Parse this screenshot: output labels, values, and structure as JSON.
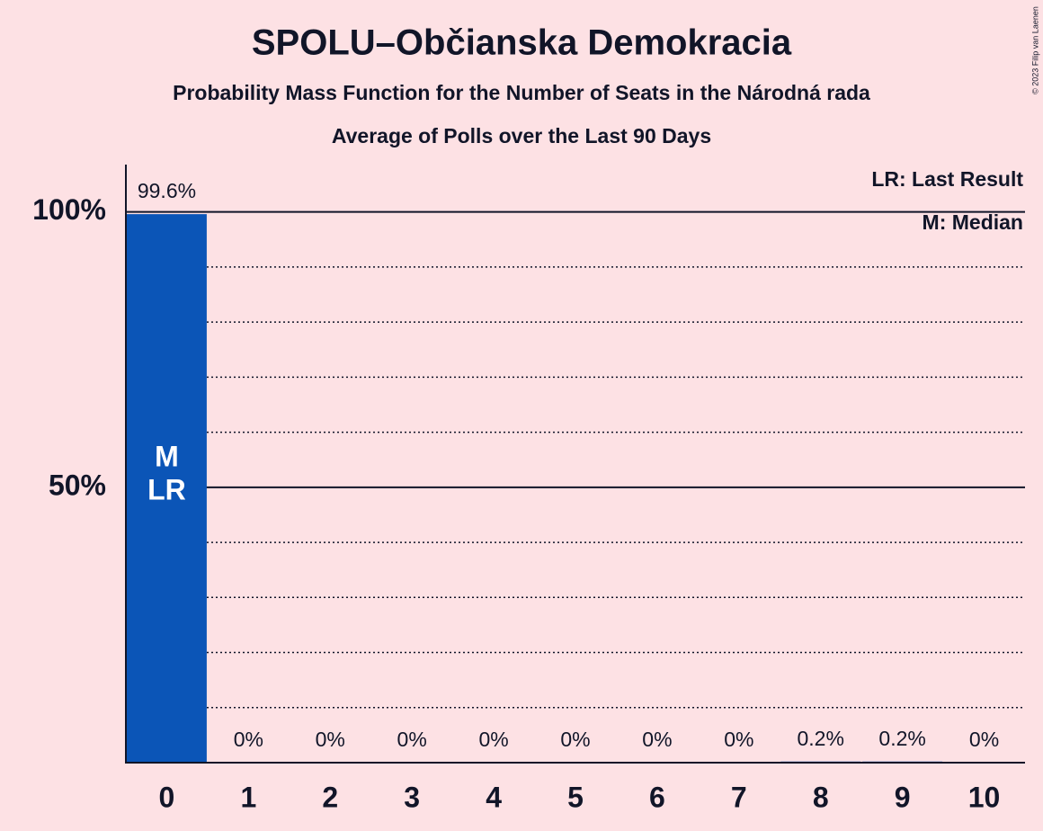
{
  "chart_data": {
    "type": "bar",
    "title": "SPOLU–Občianska Demokracia",
    "subtitles": [
      "Probability Mass Function for the Number of Seats in the Národná rada",
      "Average of Polls over the Last 90 Days"
    ],
    "categories": [
      "0",
      "1",
      "2",
      "3",
      "4",
      "5",
      "6",
      "7",
      "8",
      "9",
      "10"
    ],
    "values": [
      99.6,
      0,
      0,
      0,
      0,
      0,
      0,
      0,
      0.2,
      0.2,
      0
    ],
    "value_labels": [
      "99.6%",
      "0%",
      "0%",
      "0%",
      "0%",
      "0%",
      "0%",
      "0%",
      "0.2%",
      "0.2%",
      "0%"
    ],
    "color": "#0b55b7",
    "ylim": [
      0,
      108.6
    ],
    "yticks": [
      {
        "value": 50,
        "label": "50%"
      },
      {
        "value": 100,
        "label": "100%"
      }
    ],
    "minor_gridlines": [
      10,
      20,
      30,
      40,
      60,
      70,
      80,
      90
    ],
    "median": 0,
    "median_label": "M",
    "last_result": 0,
    "last_result_label": "LR",
    "legend": [
      "LR: Last Result",
      "M: Median"
    ],
    "copyright": "© 2023 Filip van Laenen"
  }
}
